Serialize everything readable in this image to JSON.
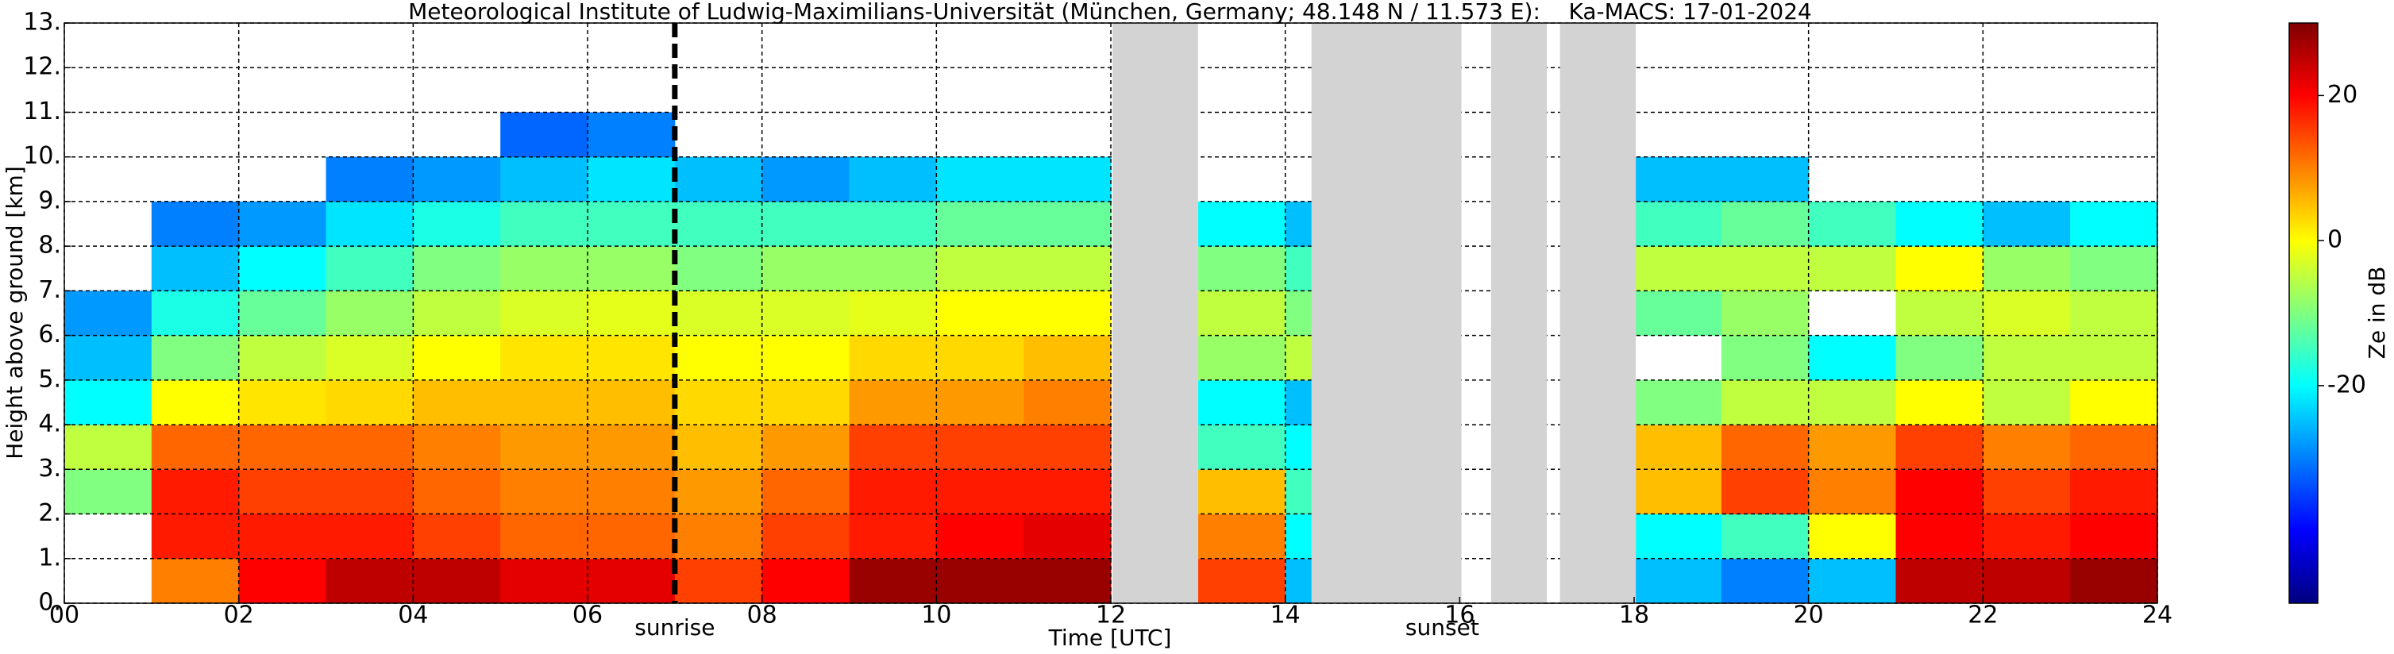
{
  "chart_data": {
    "type": "heatmap",
    "title": "Meteorological Institute of Ludwig-Maximilians-Universität (München, Germany; 48.148 N / 11.573 E):    Ka-MACS: 17-01-2024",
    "xlabel": "Time [UTC]",
    "ylabel": "Height above ground [km]",
    "colorbar_label": "Ze in dB",
    "xlim": [
      0,
      24
    ],
    "ylim": [
      0,
      13
    ],
    "xticks": [
      {
        "value": 0,
        "label": "00"
      },
      {
        "value": 2,
        "label": "02"
      },
      {
        "value": 4,
        "label": "04"
      },
      {
        "value": 6,
        "label": "06"
      },
      {
        "value": 8,
        "label": "08"
      },
      10,
      12,
      14,
      16,
      18,
      20,
      22,
      24
    ],
    "yticks": [
      {
        "value": 0,
        "label": "0."
      },
      {
        "value": 1,
        "label": "1."
      },
      {
        "value": 2,
        "label": "2."
      },
      {
        "value": 3,
        "label": "3."
      },
      {
        "value": 4,
        "label": "4."
      },
      {
        "value": 5,
        "label": "5."
      },
      {
        "value": 6,
        "label": "6."
      },
      {
        "value": 7,
        "label": "7."
      },
      {
        "value": 8,
        "label": "8."
      },
      {
        "value": 9,
        "label": "9."
      },
      {
        "value": 10,
        "label": "10."
      },
      {
        "value": 11,
        "label": "11."
      },
      {
        "value": 12,
        "label": "12."
      },
      {
        "value": 13,
        "label": "13."
      }
    ],
    "clim": [
      -50,
      30
    ],
    "cticks": [
      -20,
      0,
      20
    ],
    "grid": true,
    "colormap": "jet",
    "time_bins": [
      0,
      1,
      2,
      3,
      4,
      5,
      6,
      7,
      8,
      9,
      10,
      11,
      12,
      13,
      14,
      15,
      16,
      17,
      18,
      19,
      20,
      21,
      22,
      23,
      24
    ],
    "height_bins": [
      0,
      1,
      2,
      3,
      4,
      5,
      6,
      7,
      8,
      9,
      10,
      11,
      12,
      13
    ],
    "z": [
      [
        null,
        null,
        -10,
        -5,
        -20,
        -25,
        -28,
        null,
        null,
        null,
        null,
        null,
        null
      ],
      [
        10,
        18,
        18,
        12,
        0,
        -10,
        -18,
        -25,
        -30,
        null,
        null,
        null,
        null
      ],
      [
        20,
        18,
        15,
        12,
        2,
        -5,
        -12,
        -20,
        -28,
        null,
        null,
        null,
        null
      ],
      [
        25,
        18,
        15,
        12,
        3,
        -3,
        -8,
        -15,
        -22,
        -30,
        null,
        null,
        null
      ],
      [
        25,
        15,
        12,
        10,
        5,
        0,
        -5,
        -10,
        -18,
        -28,
        null,
        null,
        null
      ],
      [
        22,
        12,
        10,
        8,
        5,
        2,
        -3,
        -8,
        -15,
        -25,
        -32,
        null,
        null
      ],
      [
        22,
        12,
        10,
        8,
        5,
        2,
        -2,
        -8,
        -15,
        -22,
        -30,
        null,
        null
      ],
      [
        15,
        10,
        8,
        5,
        3,
        0,
        -3,
        -10,
        -15,
        -25,
        null,
        null,
        null
      ],
      [
        20,
        15,
        12,
        8,
        3,
        0,
        -3,
        -8,
        -15,
        -28,
        null,
        null,
        null
      ],
      [
        28,
        18,
        18,
        15,
        8,
        3,
        -2,
        -8,
        -15,
        -25,
        null,
        null,
        null
      ],
      [
        28,
        20,
        18,
        15,
        8,
        3,
        0,
        -5,
        -12,
        -22,
        null,
        null,
        null
      ],
      [
        28,
        22,
        18,
        15,
        10,
        5,
        0,
        -5,
        -12,
        -22,
        null,
        null,
        null
      ],
      [
        null,
        null,
        null,
        null,
        null,
        null,
        null,
        null,
        null,
        null,
        null,
        null,
        null
      ],
      [
        15,
        10,
        5,
        -15,
        -20,
        -8,
        -5,
        -10,
        -20,
        null,
        null,
        null,
        null
      ],
      [
        -25,
        -20,
        -15,
        -20,
        -25,
        -5,
        -10,
        -15,
        -25,
        null,
        null,
        null,
        null
      ],
      [
        null,
        null,
        null,
        null,
        null,
        null,
        null,
        null,
        null,
        null,
        null,
        null,
        null
      ],
      [
        null,
        null,
        null,
        null,
        null,
        null,
        null,
        null,
        null,
        null,
        null,
        null,
        null
      ],
      [
        null,
        null,
        null,
        null,
        null,
        null,
        null,
        null,
        null,
        null,
        null,
        null,
        null
      ],
      [
        -25,
        -20,
        5,
        5,
        -10,
        null,
        -12,
        -5,
        -15,
        -25,
        null,
        null,
        null
      ],
      [
        -30,
        -15,
        15,
        12,
        -5,
        -10,
        -8,
        -5,
        -12,
        -25,
        null,
        null,
        null
      ],
      [
        -25,
        0,
        10,
        8,
        -5,
        -20,
        null,
        -5,
        -15,
        null,
        null,
        null,
        null
      ],
      [
        25,
        20,
        20,
        15,
        0,
        -10,
        -5,
        0,
        -20,
        null,
        null,
        null,
        null
      ],
      [
        25,
        18,
        15,
        10,
        -5,
        -5,
        -3,
        -8,
        -25,
        null,
        null,
        null,
        null
      ],
      [
        28,
        20,
        18,
        12,
        0,
        -5,
        -5,
        -10,
        -20,
        null,
        null,
        null,
        null
      ]
    ],
    "missing_intervals": [
      [
        12.02,
        13.0
      ],
      [
        14.3,
        16.02
      ],
      [
        16.36,
        17.0
      ],
      [
        17.15,
        18.02
      ]
    ],
    "missing_color": "#d3d3d3",
    "annotations": [
      {
        "text": "sunrise",
        "x": 7.0,
        "line": true
      },
      {
        "text": "sunset",
        "x": 15.8,
        "line": false
      }
    ]
  }
}
